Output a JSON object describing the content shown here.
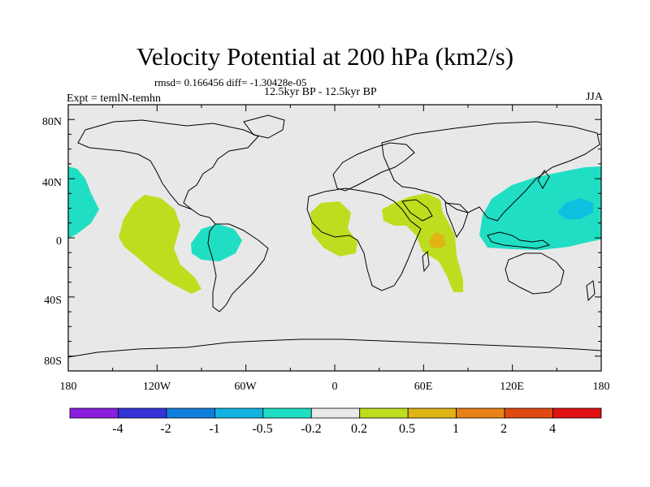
{
  "title": "Velocity Potential at 200 hPa (km2/s)",
  "stats": "rmsd= 0.166456 diff= -1.30428e-05",
  "subtitle": "12.5kyr BP - 12.5kyr BP",
  "experiment": "Expt = temlN-temhn",
  "season": "JJA",
  "colors": {
    "land_outline": "#000000",
    "background_fill": "#e8e8e8",
    "positive_0_2": "#bfdd1f",
    "positive_0_5": "#e0b317",
    "negative_0_2": "#1fdec3",
    "negative_0_5": "#0fbfe0"
  },
  "map": {
    "y_ticks": [
      "80N",
      "40N",
      "0",
      "40S",
      "80S"
    ],
    "x_ticks": [
      "180",
      "120W",
      "60W",
      "0",
      "60E",
      "120E",
      "180"
    ]
  },
  "colorbar": {
    "colors": [
      "#8a1fe0",
      "#3434da",
      "#0f7fdd",
      "#12b3e3",
      "#1fdec3",
      "#e8e8e8",
      "#bfdd1f",
      "#e0b317",
      "#e88217",
      "#e04a12",
      "#e01212"
    ],
    "labels": [
      "-4",
      "-2",
      "-1",
      "-0.5",
      "-0.2",
      "0.2",
      "0.5",
      "1",
      "2",
      "4"
    ]
  }
}
